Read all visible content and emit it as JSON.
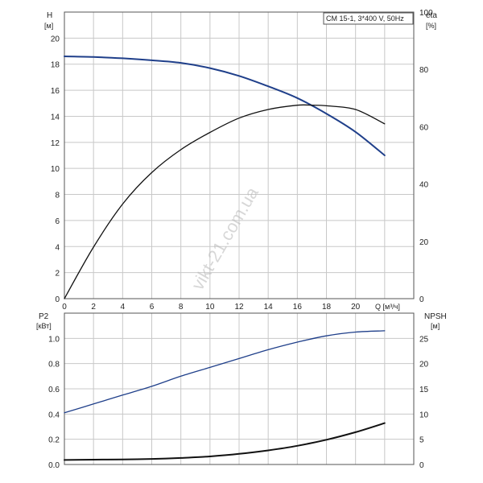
{
  "title_box": "CM 15-1, 3*400 V, 50Hz",
  "watermark": "vikt-21.com.ua",
  "colors": {
    "blue_curve": "#1f3f8a",
    "black_curve": "#111111",
    "grid": "#c8c8c8"
  },
  "chart_data": [
    {
      "type": "line",
      "panel": "top",
      "left_axis": {
        "label": "H",
        "unit": "[м]",
        "ylim": [
          0,
          22
        ],
        "ticks": [
          "0",
          "2",
          "4",
          "6",
          "8",
          "10",
          "12",
          "14",
          "16",
          "18",
          "20"
        ]
      },
      "right_axis": {
        "label": "eta",
        "unit": "[%]",
        "ylim": [
          0,
          100
        ],
        "ticks": [
          "0",
          "20",
          "40",
          "60",
          "80",
          "100"
        ]
      },
      "x_axis": {
        "label": "Q [м³/ч]",
        "xlim": [
          0,
          24
        ],
        "ticks": [
          "0",
          "2",
          "4",
          "6",
          "8",
          "10",
          "12",
          "14",
          "16",
          "18",
          "20"
        ]
      },
      "grid": true,
      "series": [
        {
          "axis": "left",
          "color": "#1f3f8a",
          "x": [
            0,
            2,
            4,
            6,
            8,
            10,
            12,
            14,
            16,
            18,
            20,
            22
          ],
          "values": [
            18.6,
            18.55,
            18.45,
            18.3,
            18.1,
            17.7,
            17.1,
            16.3,
            15.4,
            14.2,
            12.8,
            11.0
          ]
        },
        {
          "axis": "right",
          "color": "#111111",
          "x": [
            0,
            2,
            4,
            6,
            8,
            10,
            12,
            14,
            16,
            17,
            18,
            20,
            22
          ],
          "values": [
            0,
            18,
            33,
            44,
            52,
            58,
            63,
            66,
            67.5,
            67.5,
            67.3,
            66,
            61
          ]
        }
      ]
    },
    {
      "type": "line",
      "panel": "bottom",
      "left_axis": {
        "label": "P2",
        "unit": "[кВт]",
        "ylim": [
          0,
          1.2
        ],
        "ticks": [
          "0.0",
          "0.2",
          "0.4",
          "0.6",
          "0.8",
          "1.0"
        ]
      },
      "right_axis": {
        "label": "NPSH",
        "unit": "[м]",
        "ylim": [
          0,
          30
        ],
        "ticks": [
          "0",
          "5",
          "10",
          "15",
          "20",
          "25"
        ]
      },
      "x_axis": {
        "xlim": [
          0,
          24
        ]
      },
      "grid": true,
      "series": [
        {
          "axis": "left",
          "color": "#1f3f8a",
          "x": [
            0,
            2,
            4,
            6,
            8,
            10,
            12,
            14,
            16,
            18,
            20,
            22
          ],
          "values": [
            0.41,
            0.48,
            0.55,
            0.62,
            0.7,
            0.77,
            0.84,
            0.91,
            0.97,
            1.02,
            1.05,
            1.06
          ]
        },
        {
          "axis": "right",
          "color": "#111111",
          "x": [
            0,
            2,
            4,
            6,
            8,
            10,
            12,
            14,
            16,
            18,
            20,
            22
          ],
          "values": [
            0.9,
            0.95,
            1.0,
            1.1,
            1.3,
            1.6,
            2.1,
            2.8,
            3.7,
            4.9,
            6.4,
            8.2
          ]
        }
      ]
    }
  ]
}
